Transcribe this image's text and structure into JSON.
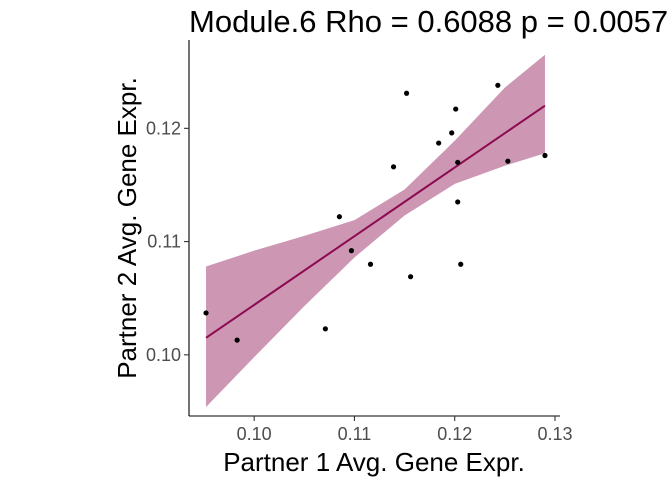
{
  "chart_data": {
    "type": "scatter",
    "title": "Module.6 Rho = 0.6088 p = 0.0057",
    "xlabel": "Partner 1 Avg. Gene Expr.",
    "ylabel": "Partner 2 Avg. Gene Expr.",
    "xlim": [
      0.0935,
      0.1305
    ],
    "ylim": [
      0.0946,
      0.1278
    ],
    "x_ticks": [
      0.1,
      0.11,
      0.12,
      0.13
    ],
    "x_tick_labels": [
      "0.10",
      "0.11",
      "0.12",
      "0.13"
    ],
    "y_ticks": [
      0.1,
      0.11,
      0.12
    ],
    "y_tick_labels": [
      "0.10",
      "0.11",
      "0.12"
    ],
    "grid": false,
    "colors": {
      "point": "#000000",
      "fit_line": "#8b0a50",
      "ribbon": "#cd96b3"
    },
    "points": [
      {
        "x": 0.0952,
        "y": 0.1037
      },
      {
        "x": 0.0983,
        "y": 0.1013
      },
      {
        "x": 0.1071,
        "y": 0.1023
      },
      {
        "x": 0.1085,
        "y": 0.1122
      },
      {
        "x": 0.1097,
        "y": 0.1092
      },
      {
        "x": 0.1116,
        "y": 0.108
      },
      {
        "x": 0.1139,
        "y": 0.1166
      },
      {
        "x": 0.1152,
        "y": 0.1231
      },
      {
        "x": 0.1156,
        "y": 0.1069
      },
      {
        "x": 0.1184,
        "y": 0.1187
      },
      {
        "x": 0.1197,
        "y": 0.1196
      },
      {
        "x": 0.1201,
        "y": 0.1217
      },
      {
        "x": 0.1203,
        "y": 0.117
      },
      {
        "x": 0.1203,
        "y": 0.1135
      },
      {
        "x": 0.1206,
        "y": 0.108
      },
      {
        "x": 0.1243,
        "y": 0.1238
      },
      {
        "x": 0.1253,
        "y": 0.1171
      },
      {
        "x": 0.129,
        "y": 0.1176
      }
    ],
    "fit_line": {
      "x": [
        0.0952,
        0.129
      ],
      "y": [
        0.1015,
        0.122
      ]
    },
    "confidence_band": {
      "x": [
        0.0952,
        0.1,
        0.105,
        0.11,
        0.115,
        0.12,
        0.125,
        0.129
      ],
      "lower": [
        0.0954,
        0.0998,
        0.1043,
        0.1086,
        0.1123,
        0.1151,
        0.1167,
        0.1178
      ],
      "upper": [
        0.1078,
        0.1092,
        0.1105,
        0.1119,
        0.1146,
        0.1189,
        0.1236,
        0.1265
      ]
    }
  }
}
